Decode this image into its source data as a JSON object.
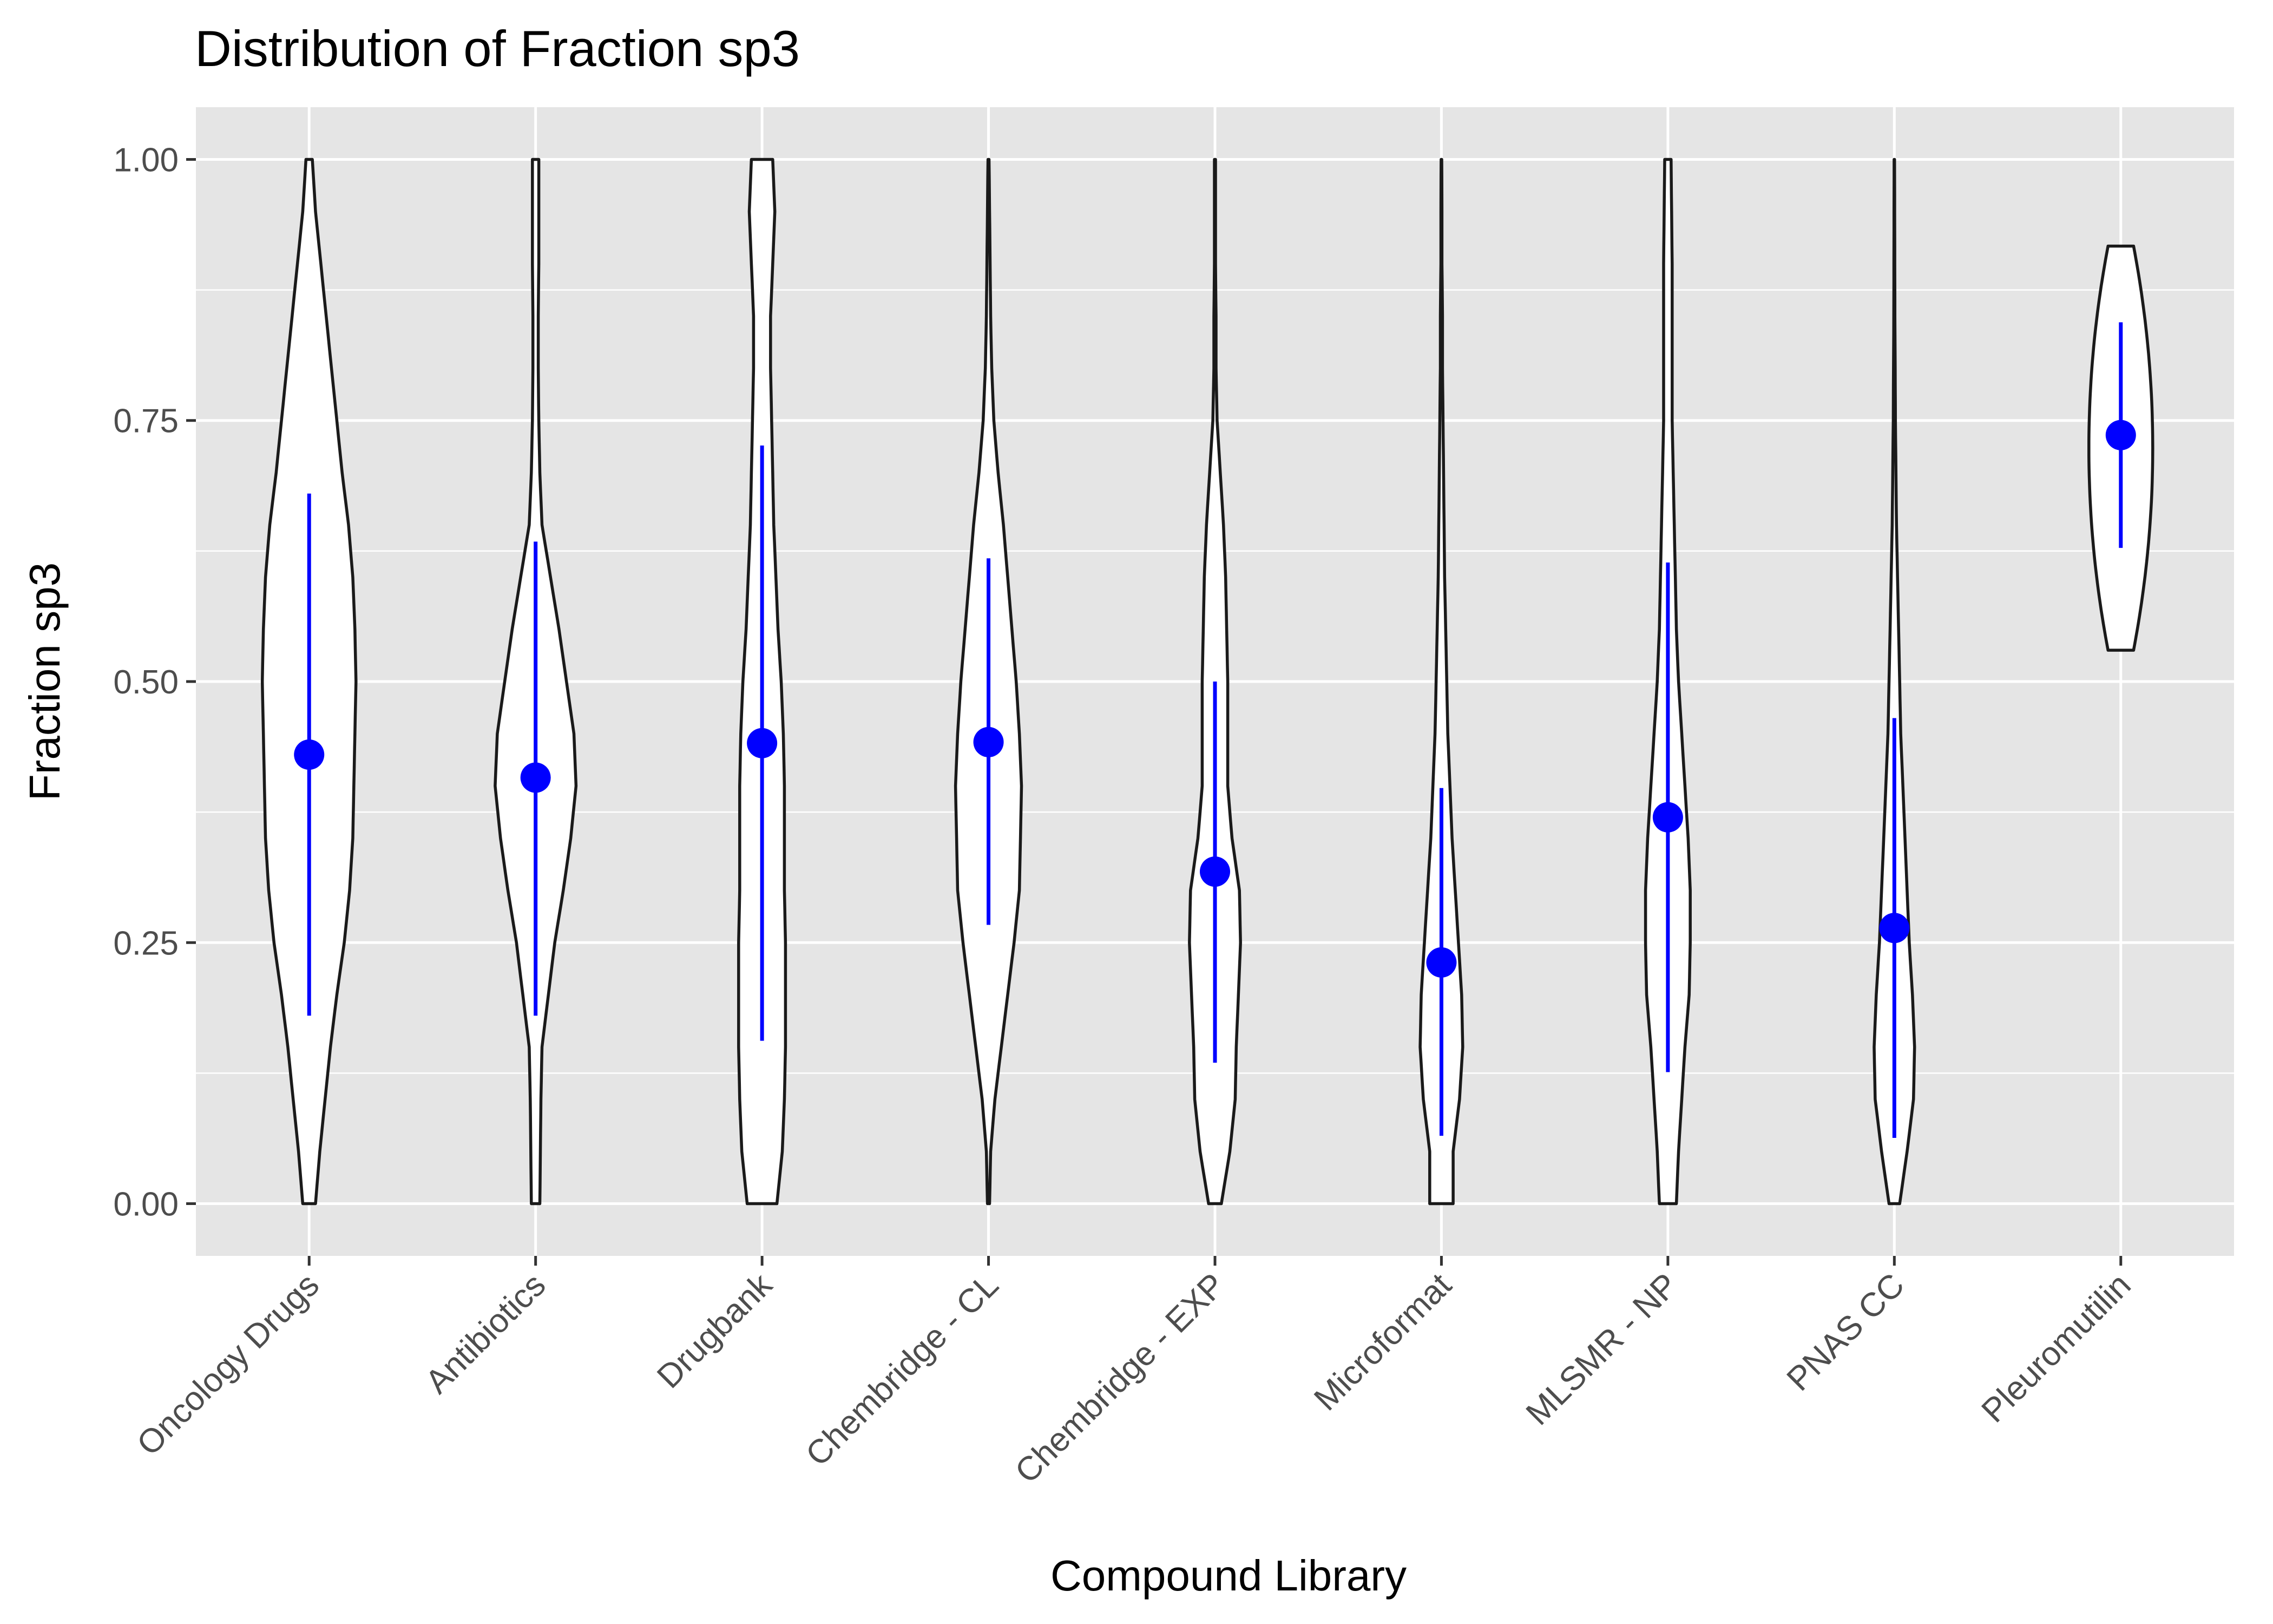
{
  "chart_data": {
    "type": "violin",
    "title": "Distribution of Fraction sp3",
    "xlabel": "Compound Library",
    "ylabel": "Fraction sp3",
    "ylim": [
      -0.05,
      1.05
    ],
    "yticks": [
      0.0,
      0.25,
      0.5,
      0.75,
      1.0
    ],
    "ytick_labels": [
      "0.00",
      "0.25",
      "0.50",
      "0.75",
      "1.00"
    ],
    "categories": [
      "Oncology Drugs",
      "Antibiotics",
      "Drugbank",
      "Chembridge - CL",
      "Chembridge - EXP",
      "Microformat",
      "MLSMR - NP",
      "PNAS CC",
      "Pleuromutilin"
    ],
    "mean": [
      0.43,
      0.408,
      0.441,
      0.442,
      0.318,
      0.231,
      0.37,
      0.264,
      0.736
    ],
    "sd_low": [
      0.18,
      0.18,
      0.156,
      0.267,
      0.135,
      0.065,
      0.126,
      0.063,
      0.628
    ],
    "sd_high": [
      0.68,
      0.634,
      0.726,
      0.618,
      0.5,
      0.398,
      0.614,
      0.465,
      0.844
    ],
    "range": [
      [
        0.0,
        1.0
      ],
      [
        0.0,
        1.0
      ],
      [
        0.0,
        1.0
      ],
      [
        0.0,
        1.0
      ],
      [
        0.0,
        1.0
      ],
      [
        0.0,
        1.0
      ],
      [
        0.0,
        1.0
      ],
      [
        0.0,
        1.0
      ],
      [
        0.53,
        0.917
      ]
    ],
    "density_y": [
      0.0,
      0.05,
      0.1,
      0.15,
      0.2,
      0.25,
      0.3,
      0.35,
      0.4,
      0.45,
      0.5,
      0.55,
      0.6,
      0.65,
      0.7,
      0.75,
      0.8,
      0.85,
      0.9,
      0.95,
      1.0
    ],
    "density_halfwidth": [
      [
        0.06,
        0.1,
        0.15,
        0.2,
        0.26,
        0.33,
        0.38,
        0.41,
        0.42,
        0.43,
        0.44,
        0.43,
        0.41,
        0.37,
        0.31,
        0.26,
        0.21,
        0.16,
        0.11,
        0.06,
        0.03
      ],
      [
        0.04,
        0.045,
        0.05,
        0.06,
        0.12,
        0.18,
        0.26,
        0.33,
        0.38,
        0.36,
        0.29,
        0.22,
        0.14,
        0.06,
        0.04,
        0.03,
        0.025,
        0.025,
        0.03,
        0.03,
        0.03
      ],
      [
        0.14,
        0.19,
        0.21,
        0.22,
        0.22,
        0.22,
        0.21,
        0.21,
        0.21,
        0.2,
        0.18,
        0.15,
        0.13,
        0.11,
        0.1,
        0.09,
        0.08,
        0.08,
        0.1,
        0.12,
        0.1
      ],
      [
        0.01,
        0.02,
        0.06,
        0.12,
        0.18,
        0.24,
        0.29,
        0.3,
        0.31,
        0.29,
        0.26,
        0.22,
        0.18,
        0.14,
        0.09,
        0.05,
        0.03,
        0.02,
        0.015,
        0.01,
        0.005
      ],
      [
        0.06,
        0.14,
        0.19,
        0.2,
        0.22,
        0.24,
        0.23,
        0.16,
        0.12,
        0.12,
        0.12,
        0.11,
        0.1,
        0.08,
        0.05,
        0.02,
        0.01,
        0.01,
        0.005,
        0.005,
        0.005
      ],
      [
        0.11,
        0.11,
        0.17,
        0.2,
        0.19,
        0.16,
        0.13,
        0.1,
        0.08,
        0.06,
        0.05,
        0.04,
        0.03,
        0.025,
        0.02,
        0.015,
        0.01,
        0.01,
        0.005,
        0.005,
        0.003
      ],
      [
        0.08,
        0.1,
        0.13,
        0.16,
        0.2,
        0.21,
        0.21,
        0.19,
        0.16,
        0.13,
        0.1,
        0.08,
        0.07,
        0.06,
        0.05,
        0.04,
        0.04,
        0.04,
        0.04,
        0.035,
        0.03
      ],
      [
        0.05,
        0.12,
        0.18,
        0.19,
        0.17,
        0.14,
        0.12,
        0.1,
        0.08,
        0.06,
        0.05,
        0.04,
        0.03,
        0.02,
        0.015,
        0.01,
        0.008,
        0.005,
        0.004,
        0.003,
        0.002
      ],
      [
        0,
        0,
        0,
        0,
        0,
        0,
        0,
        0,
        0,
        0,
        0,
        0.12,
        0.2,
        0.24,
        0.28,
        0.3,
        0.28,
        0.24,
        0.18,
        0,
        0
      ]
    ],
    "grid": true,
    "colors": {
      "panel": "#e5e5e5",
      "grid": "#ffffff",
      "violin_fill": "#ffffff",
      "violin_stroke": "#1a1a1a",
      "mean_point": "#0000ff",
      "sd_line": "#0000ff",
      "tick_label": "#4d4d4d"
    }
  }
}
